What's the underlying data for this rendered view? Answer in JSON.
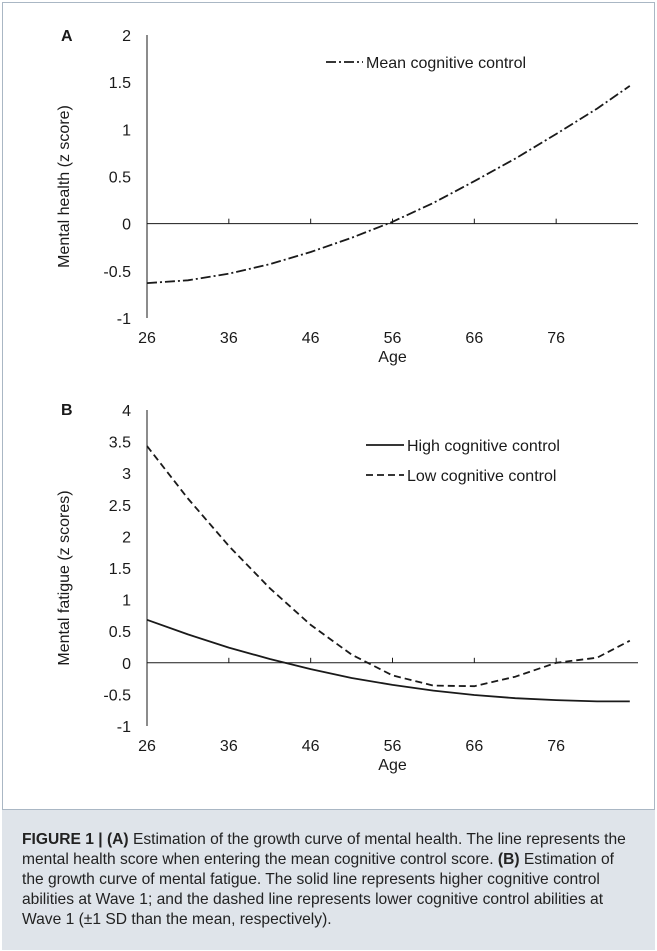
{
  "chart_data": [
    {
      "panel_label": "A",
      "type": "line",
      "xlabel": "Age",
      "ylabel": "Mental health (z score)",
      "xticks": [
        "26",
        "36",
        "46",
        "56",
        "66",
        "76"
      ],
      "yticks": [
        "2",
        "1.5",
        "1",
        "0.5",
        "0",
        "-0.5",
        "-1"
      ],
      "xlim": [
        26,
        86
      ],
      "ylim": [
        -1,
        2
      ],
      "legend_position": "top-right",
      "series": [
        {
          "name": "Mean cognitive control",
          "style": "dash-dot",
          "x": [
            26,
            31,
            36,
            41,
            46,
            51,
            56,
            61,
            66,
            71,
            76,
            81,
            85
          ],
          "y": [
            -0.63,
            -0.6,
            -0.53,
            -0.43,
            -0.3,
            -0.15,
            0.02,
            0.22,
            0.45,
            0.69,
            0.95,
            1.22,
            1.46
          ]
        }
      ]
    },
    {
      "panel_label": "B",
      "type": "line",
      "xlabel": "Age",
      "ylabel": "Mental fatigue (z scores)",
      "xticks": [
        "26",
        "36",
        "46",
        "56",
        "66",
        "76"
      ],
      "yticks": [
        "4",
        "3.5",
        "3",
        "2.5",
        "2",
        "1.5",
        "1",
        "0.5",
        "0",
        "-0.5",
        "-1"
      ],
      "xlim": [
        26,
        86
      ],
      "ylim": [
        -1,
        4
      ],
      "legend_position": "top-right",
      "series": [
        {
          "name": "High cognitive control",
          "style": "solid",
          "x": [
            26,
            31,
            36,
            41,
            46,
            51,
            56,
            61,
            66,
            71,
            76,
            81,
            85
          ],
          "y": [
            0.68,
            0.45,
            0.24,
            0.06,
            -0.1,
            -0.24,
            -0.35,
            -0.44,
            -0.51,
            -0.56,
            -0.59,
            -0.61,
            -0.61
          ]
        },
        {
          "name": "Low cognitive control",
          "style": "dashed",
          "x": [
            26,
            31,
            36,
            41,
            46,
            51,
            56,
            61,
            66,
            71,
            76,
            81,
            85
          ],
          "y": [
            3.43,
            2.6,
            1.85,
            1.18,
            0.6,
            0.13,
            -0.2,
            -0.36,
            -0.37,
            -0.22,
            0.0,
            0.08,
            0.35
          ]
        }
      ]
    }
  ],
  "caption": {
    "label": "FIGURE 1 | ",
    "part_a": "(A)",
    "text_a": " Estimation of the growth curve of mental health. The line represents the mental health score when entering the mean cognitive control score. ",
    "part_b": "(B)",
    "text_b": " Estimation of the growth curve of mental fatigue. The solid line represents higher cognitive control abilities at Wave 1; and the dashed line represents lower cognitive control abilities at Wave 1 (±1 SD than the mean, respectively)."
  },
  "colors": {
    "line": "#1a1a1a",
    "caption_bg": "#dfe4ea",
    "frame": "#aab7c4"
  }
}
